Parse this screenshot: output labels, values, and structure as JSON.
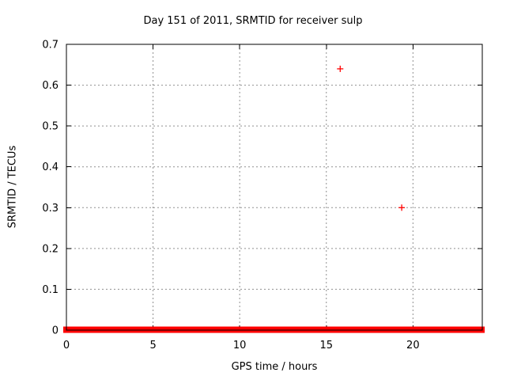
{
  "window": {
    "background": "#ffffff"
  },
  "chart_data": {
    "type": "scatter",
    "title": "Day 151 of 2011, SRMTID for receiver sulp",
    "xlabel": "GPS time / hours",
    "ylabel": "SRMTID / TECUs",
    "xlim": [
      0,
      24
    ],
    "ylim": [
      0,
      0.7
    ],
    "xtick_values": [
      0,
      5,
      10,
      15,
      20
    ],
    "xtick_labels": [
      "0",
      "5",
      "10",
      "15",
      "20"
    ],
    "ytick_values": [
      0,
      0.1,
      0.2,
      0.3,
      0.4,
      0.5,
      0.6,
      0.7
    ],
    "ytick_labels": [
      "0",
      "0.1",
      "0.2",
      "0.3",
      "0.4",
      "0.5",
      "0.6",
      "0.7"
    ],
    "grid": true,
    "legend": "none",
    "marker": "plus",
    "series": [
      {
        "name": "SRMTID",
        "color": "#ff0000",
        "points": [
          [
            15.8,
            0.64
          ],
          [
            19.35,
            0.3
          ]
        ],
        "zero_band": {
          "x_start": 0,
          "x_end": 24,
          "y": 0,
          "note": "dense run of + markers at y ~ 0 across the entire day, merging into a solid red band over the x-axis"
        }
      }
    ],
    "colors": {
      "marker": "#ff0000",
      "grid": "#909090",
      "border": "#000000",
      "text": "#000000"
    }
  }
}
